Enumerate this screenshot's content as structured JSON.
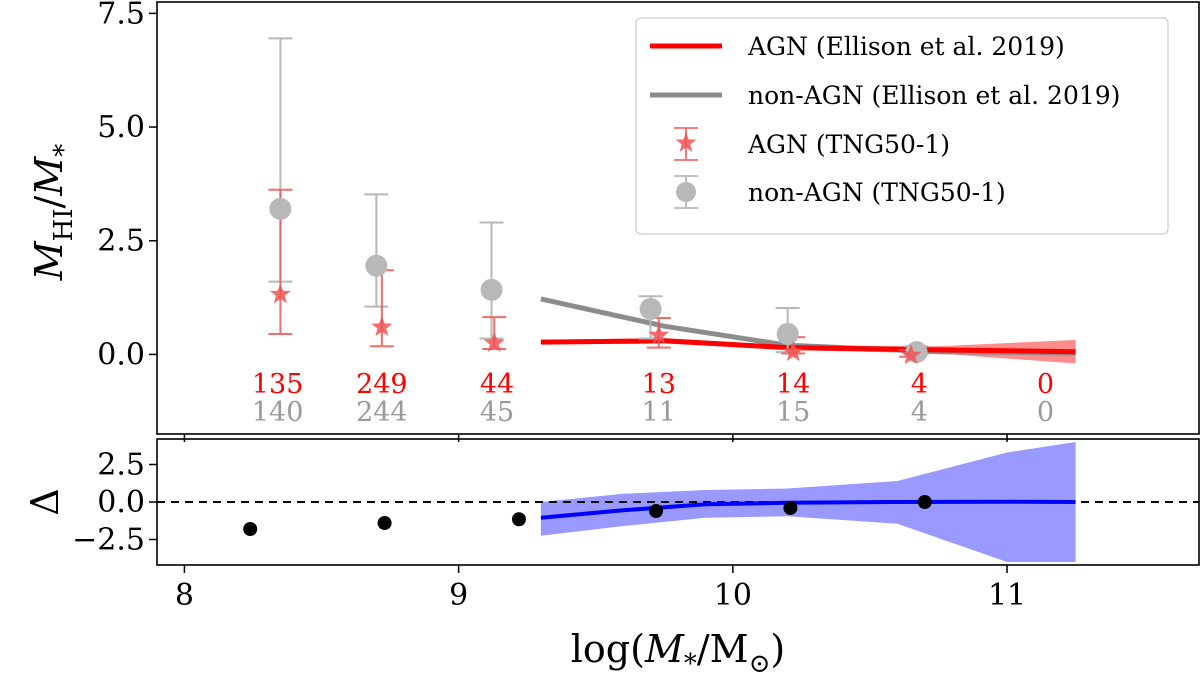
{
  "chart_data": [
    {
      "panel": "top",
      "type": "scatter",
      "ylabel": "M_HI/M_*",
      "ylabel_main": "M",
      "ylabel_sub": "HI",
      "ylabel_div": "/",
      "ylabel_main2": "M",
      "ylabel_sub2": "*",
      "xlim": [
        7.9,
        11.7
      ],
      "ylim": [
        -1.75,
        7.75
      ],
      "yticks": [
        0.0,
        2.5,
        5.0,
        7.5
      ],
      "ytick_labels": [
        "0.0",
        "2.5",
        "5.0",
        "7.5"
      ],
      "legend_position": "top-right",
      "colors": {
        "agn": "#ff0000",
        "nonagn": "#8c8c8c",
        "agn_marker": "#f05555",
        "nonagn_marker": "#b8b8b8"
      },
      "series": [
        {
          "name": "non-AGN (TNG50-1)",
          "kind": "errorbar",
          "marker": "circle",
          "x": [
            8.35,
            8.7,
            9.12,
            9.7,
            10.2,
            10.67
          ],
          "y": [
            3.2,
            1.95,
            1.42,
            1.0,
            0.45,
            0.05
          ],
          "yerr_low": [
            1.6,
            1.05,
            0.35,
            0.35,
            0.05,
            0.0
          ],
          "yerr_high": [
            6.95,
            3.52,
            2.9,
            1.28,
            1.02,
            0.18
          ]
        },
        {
          "name": "AGN (TNG50-1)",
          "kind": "errorbar",
          "marker": "star",
          "x": [
            8.35,
            8.72,
            9.13,
            9.73,
            10.22,
            10.65
          ],
          "y": [
            1.32,
            0.6,
            0.25,
            0.42,
            0.05,
            -0.02
          ],
          "yerr_low": [
            0.45,
            0.18,
            0.12,
            0.15,
            0.02,
            -0.05
          ],
          "yerr_high": [
            3.62,
            1.85,
            0.82,
            0.8,
            0.38,
            0.1
          ]
        },
        {
          "name": "AGN (Ellison et al. 2019)",
          "kind": "line",
          "x": [
            9.3,
            9.75,
            10.2,
            10.75,
            11.25
          ],
          "y": [
            0.27,
            0.3,
            0.15,
            0.1,
            0.06
          ],
          "band_low": [
            0.22,
            0.24,
            0.1,
            0.02,
            -0.2
          ],
          "band_high": [
            0.32,
            0.36,
            0.2,
            0.18,
            0.32
          ]
        },
        {
          "name": "non-AGN (Ellison et al. 2019)",
          "kind": "line",
          "x": [
            9.3,
            9.75,
            10.2,
            10.75,
            11.25
          ],
          "y": [
            1.22,
            0.62,
            0.2,
            0.06,
            0.03
          ]
        }
      ],
      "count_labels": {
        "x": [
          8.34,
          8.72,
          9.14,
          9.73,
          10.22,
          10.68,
          11.14
        ],
        "agn": [
          "135",
          "249",
          "44",
          "13",
          "14",
          "4",
          "0"
        ],
        "nonagn": [
          "140",
          "244",
          "45",
          "11",
          "15",
          "4",
          "0"
        ]
      },
      "legend": [
        "AGN (Ellison et al. 2019)",
        "non-AGN (Ellison et al. 2019)",
        "AGN (TNG50-1)",
        "non-AGN (TNG50-1)"
      ]
    },
    {
      "panel": "bottom",
      "type": "scatter",
      "ylabel": "Δ",
      "xlabel": "log(M_*/M_⊙)",
      "xlabel_pre": "log(",
      "xlabel_main": "M",
      "xlabel_sub": "*",
      "xlabel_mid": "/M",
      "xlabel_sub2": "⊙",
      "xlabel_post": ")",
      "xlim": [
        7.9,
        11.7
      ],
      "ylim": [
        -4.2,
        4.2
      ],
      "xticks": [
        8,
        9,
        10,
        11
      ],
      "xtick_labels": [
        "8",
        "9",
        "10",
        "11"
      ],
      "yticks": [
        -2.5,
        0.0,
        2.5
      ],
      "ytick_labels": [
        "−2.5",
        "0.0",
        "2.5"
      ],
      "reference_line": 0.0,
      "colors": {
        "points": "#000000",
        "line": "#0000ff",
        "band": "#9999ff"
      },
      "series": [
        {
          "name": "Delta (TNG50-1)",
          "kind": "points",
          "x": [
            8.24,
            8.73,
            9.22,
            9.72,
            10.21,
            10.7
          ],
          "y": [
            -1.8,
            -1.4,
            -1.15,
            -0.6,
            -0.4,
            0.0
          ]
        },
        {
          "name": "Delta (Ellison et al. 2019)",
          "kind": "line",
          "x": [
            9.3,
            9.6,
            9.9,
            10.2,
            10.6,
            11.0,
            11.25
          ],
          "y": [
            -1.05,
            -0.55,
            -0.15,
            -0.05,
            0.0,
            0.02,
            0.0
          ],
          "band_low": [
            -2.25,
            -1.6,
            -1.05,
            -0.95,
            -1.45,
            -4.0,
            -4.0
          ],
          "band_high": [
            0.0,
            0.55,
            0.8,
            0.9,
            1.4,
            3.3,
            4.0
          ]
        }
      ]
    }
  ]
}
